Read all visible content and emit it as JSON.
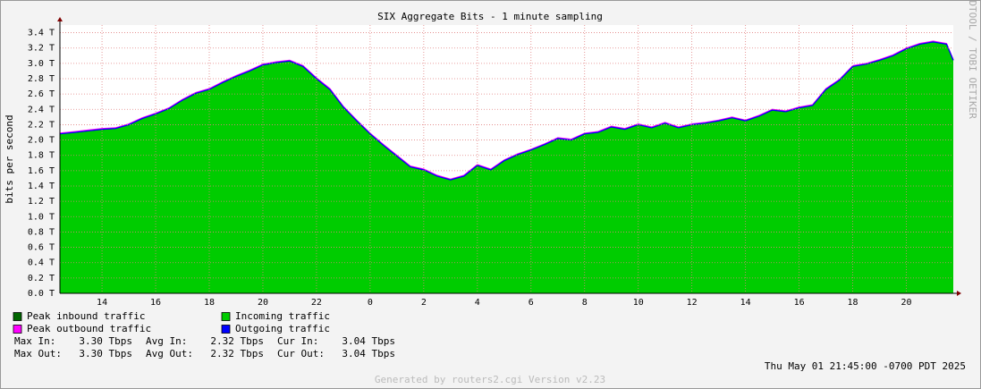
{
  "chart_data": {
    "type": "area",
    "title": "SIX Aggregate Bits - 1 minute sampling",
    "y_label": "bits per second",
    "watermark": "RRDTOOL / TOBI OETIKER",
    "timestamp": "Thu May 01 21:45:00 -0700 PDT 2025",
    "footer": "Generated by routers2.cgi Version v2.23",
    "x": [
      12.43,
      13,
      13.5,
      14,
      14.5,
      15,
      15.5,
      16,
      16.5,
      17,
      17.5,
      18,
      18.5,
      19,
      19.5,
      20,
      20.5,
      21,
      21.5,
      22,
      22.5,
      23,
      23.5,
      24,
      24.5,
      25,
      25.5,
      26,
      26.5,
      27,
      27.5,
      28,
      28.5,
      29,
      29.5,
      30,
      30.5,
      31,
      31.5,
      32,
      32.5,
      33,
      33.5,
      34,
      34.5,
      35,
      35.5,
      36,
      36.5,
      37,
      37.5,
      38,
      38.5,
      39,
      39.5,
      40,
      40.5,
      41,
      41.5,
      42,
      42.5,
      43,
      43.5,
      44,
      44.5,
      45,
      45.5,
      45.75
    ],
    "series": [
      {
        "name": "Peak inbound traffic",
        "color": "#006600",
        "style": "line",
        "values": [
          2.08,
          2.1,
          2.12,
          2.14,
          2.15,
          2.2,
          2.28,
          2.34,
          2.41,
          2.52,
          2.61,
          2.66,
          2.75,
          2.83,
          2.9,
          2.98,
          3.01,
          3.03,
          2.96,
          2.8,
          2.66,
          2.43,
          2.25,
          2.08,
          1.93,
          1.79,
          1.65,
          1.61,
          1.53,
          1.48,
          1.53,
          1.67,
          1.61,
          1.73,
          1.81,
          1.87,
          1.94,
          2.02,
          2.0,
          2.08,
          2.1,
          2.17,
          2.14,
          2.2,
          2.16,
          2.22,
          2.16,
          2.2,
          2.22,
          2.25,
          2.29,
          2.25,
          2.31,
          2.39,
          2.37,
          2.42,
          2.45,
          2.66,
          2.78,
          2.96,
          2.99,
          3.04,
          3.1,
          3.19,
          3.25,
          3.28,
          3.25,
          3.04
        ]
      },
      {
        "name": "Incoming traffic",
        "color": "#00cc00",
        "style": "area",
        "values": [
          2.08,
          2.1,
          2.12,
          2.14,
          2.15,
          2.2,
          2.28,
          2.34,
          2.41,
          2.52,
          2.61,
          2.66,
          2.75,
          2.83,
          2.9,
          2.98,
          3.01,
          3.03,
          2.96,
          2.8,
          2.66,
          2.43,
          2.25,
          2.08,
          1.93,
          1.79,
          1.65,
          1.61,
          1.53,
          1.48,
          1.53,
          1.67,
          1.61,
          1.73,
          1.81,
          1.87,
          1.94,
          2.02,
          2.0,
          2.08,
          2.1,
          2.17,
          2.14,
          2.2,
          2.16,
          2.22,
          2.16,
          2.2,
          2.22,
          2.25,
          2.29,
          2.25,
          2.31,
          2.39,
          2.37,
          2.42,
          2.45,
          2.66,
          2.78,
          2.96,
          2.99,
          3.04,
          3.1,
          3.19,
          3.25,
          3.28,
          3.25,
          3.04
        ]
      },
      {
        "name": "Peak outbound traffic",
        "color": "#ff00ff",
        "style": "line",
        "values": [
          2.09,
          2.11,
          2.13,
          2.15,
          2.16,
          2.21,
          2.29,
          2.35,
          2.42,
          2.53,
          2.62,
          2.67,
          2.76,
          2.84,
          2.91,
          2.99,
          3.02,
          3.04,
          2.97,
          2.81,
          2.67,
          2.44,
          2.26,
          2.09,
          1.94,
          1.8,
          1.66,
          1.62,
          1.54,
          1.49,
          1.54,
          1.68,
          1.62,
          1.74,
          1.82,
          1.88,
          1.95,
          2.03,
          2.01,
          2.09,
          2.11,
          2.18,
          2.15,
          2.21,
          2.17,
          2.23,
          2.17,
          2.21,
          2.23,
          2.26,
          2.3,
          2.26,
          2.32,
          2.4,
          2.38,
          2.43,
          2.46,
          2.67,
          2.79,
          2.97,
          3.0,
          3.05,
          3.11,
          3.2,
          3.26,
          3.29,
          3.26,
          3.05
        ]
      },
      {
        "name": "Outgoing traffic",
        "color": "#0000ff",
        "style": "line",
        "values": [
          2.08,
          2.1,
          2.12,
          2.14,
          2.15,
          2.2,
          2.28,
          2.34,
          2.41,
          2.52,
          2.61,
          2.66,
          2.75,
          2.83,
          2.9,
          2.98,
          3.01,
          3.03,
          2.96,
          2.8,
          2.66,
          2.43,
          2.25,
          2.08,
          1.93,
          1.79,
          1.65,
          1.61,
          1.53,
          1.48,
          1.53,
          1.67,
          1.61,
          1.73,
          1.81,
          1.87,
          1.94,
          2.02,
          2.0,
          2.08,
          2.1,
          2.17,
          2.14,
          2.2,
          2.16,
          2.22,
          2.16,
          2.2,
          2.22,
          2.25,
          2.29,
          2.25,
          2.31,
          2.39,
          2.37,
          2.42,
          2.45,
          2.66,
          2.78,
          2.96,
          2.99,
          3.04,
          3.1,
          3.19,
          3.25,
          3.28,
          3.25,
          3.04
        ]
      }
    ],
    "xlim": [
      12.43,
      45.75
    ],
    "xticks": [
      14,
      16,
      18,
      20,
      22,
      {
        "value": 24,
        "label": "0"
      },
      {
        "value": 26,
        "label": "2"
      },
      {
        "value": 28,
        "label": "4"
      },
      {
        "value": 30,
        "label": "6"
      },
      {
        "value": 32,
        "label": "8"
      },
      {
        "value": 34,
        "label": "10"
      },
      {
        "value": 36,
        "label": "12"
      },
      {
        "value": 38,
        "label": "14"
      },
      {
        "value": 40,
        "label": "16"
      },
      {
        "value": 42,
        "label": "18"
      },
      {
        "value": 44,
        "label": "20"
      }
    ],
    "ylim": [
      0,
      3.5
    ],
    "yticks": [
      {
        "value": 0,
        "label": "0.0 T"
      },
      {
        "value": 0.2,
        "label": "0.2 T"
      },
      {
        "value": 0.4,
        "label": "0.4 T"
      },
      {
        "value": 0.6,
        "label": "0.6 T"
      },
      {
        "value": 0.8,
        "label": "0.8 T"
      },
      {
        "value": 1.0,
        "label": "1.0 T"
      },
      {
        "value": 1.2,
        "label": "1.2 T"
      },
      {
        "value": 1.4,
        "label": "1.4 T"
      },
      {
        "value": 1.6,
        "label": "1.6 T"
      },
      {
        "value": 1.8,
        "label": "1.8 T"
      },
      {
        "value": 2.0,
        "label": "2.0 T"
      },
      {
        "value": 2.2,
        "label": "2.2 T"
      },
      {
        "value": 2.4,
        "label": "2.4 T"
      },
      {
        "value": 2.6,
        "label": "2.6 T"
      },
      {
        "value": 2.8,
        "label": "2.8 T"
      },
      {
        "value": 3.0,
        "label": "3.0 T"
      },
      {
        "value": 3.2,
        "label": "3.2 T"
      },
      {
        "value": 3.4,
        "label": "3.4 T"
      }
    ],
    "grid": true,
    "stats": [
      [
        [
          "Max In:",
          "3.30 Tbps"
        ],
        [
          "Avg In:",
          "2.32 Tbps"
        ],
        [
          "Cur In:",
          "3.04 Tbps"
        ]
      ],
      [
        [
          "Max Out:",
          "3.30 Tbps"
        ],
        [
          "Avg Out:",
          "2.32 Tbps"
        ],
        [
          "Cur Out:",
          "3.04 Tbps"
        ]
      ]
    ]
  }
}
